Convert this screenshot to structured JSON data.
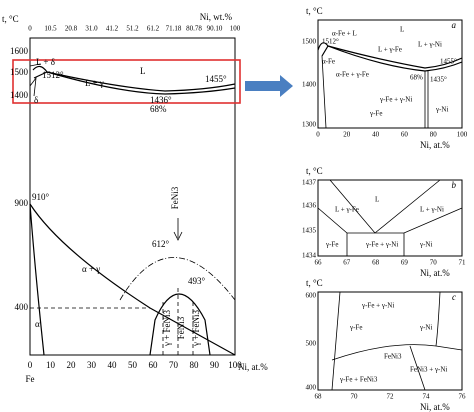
{
  "main": {
    "y_label": "t, °C",
    "x_top_label": "Ni, wt.%",
    "x_bottom_label": "Ni, at.%",
    "element": "Fe",
    "top_ticks": [
      "0",
      "10.5",
      "20.8",
      "31.0",
      "41.2",
      "51.2",
      "61.2",
      "71.18",
      "80.78",
      "90.10",
      "100"
    ],
    "bottom_ticks": [
      "0",
      "10",
      "20",
      "30",
      "40",
      "50",
      "60",
      "70",
      "80",
      "90",
      "100"
    ],
    "y_ticks": [
      "1600",
      "1500",
      "1400",
      "900",
      "400"
    ],
    "annotations": [
      "L + δ",
      "1512°",
      "L + γ",
      "L",
      "1436°",
      "68%",
      "1455°",
      "δ",
      "910°",
      "FeNi3",
      "612°",
      "α + γ",
      "493°",
      "α",
      "γ + FeNi3",
      "FeNi3",
      "γ + FeNi3"
    ]
  },
  "panel_a": {
    "y_label": "t, °C",
    "letter": "a",
    "x_label": "Ni, at.%",
    "y_ticks": [
      "1500",
      "1400",
      "1300"
    ],
    "x_ticks": [
      "0",
      "20",
      "40",
      "60",
      "80",
      "100"
    ],
    "annotations": [
      "L",
      "α-Fe + L",
      "1512°",
      "α-Fe",
      "L + γ-Fe",
      "L + γ-Ni",
      "α-Fe + γ-Fe",
      "68%",
      "1435°",
      "1455°",
      "γ-Fe + γ-Ni",
      "γ-Fe",
      "γ-Ni"
    ]
  },
  "panel_b": {
    "y_label": "t, °C",
    "letter": "b",
    "x_label": "Ni, at.%",
    "y_ticks": [
      "1437",
      "1436",
      "1435",
      "1434"
    ],
    "x_ticks": [
      "66",
      "67",
      "68",
      "69",
      "70",
      "71"
    ],
    "annotations": [
      "L",
      "L + γ-Fe",
      "L + γ-Ni",
      "γ-Fe",
      "γ-Fe + γ-Ni",
      "γ-Ni"
    ]
  },
  "panel_c": {
    "y_label": "t, °C",
    "letter": "c",
    "x_label": "Ni, at.%",
    "y_ticks": [
      "600",
      "500",
      "400"
    ],
    "x_ticks": [
      "68",
      "70",
      "72",
      "74",
      "76"
    ],
    "annotations": [
      "γ-Fe + γ-Ni",
      "γ-Fe",
      "γ-Ni",
      "FeNi3",
      "FeNi3 + γ-Ni",
      "γ-Fe + FeNi3"
    ]
  }
}
